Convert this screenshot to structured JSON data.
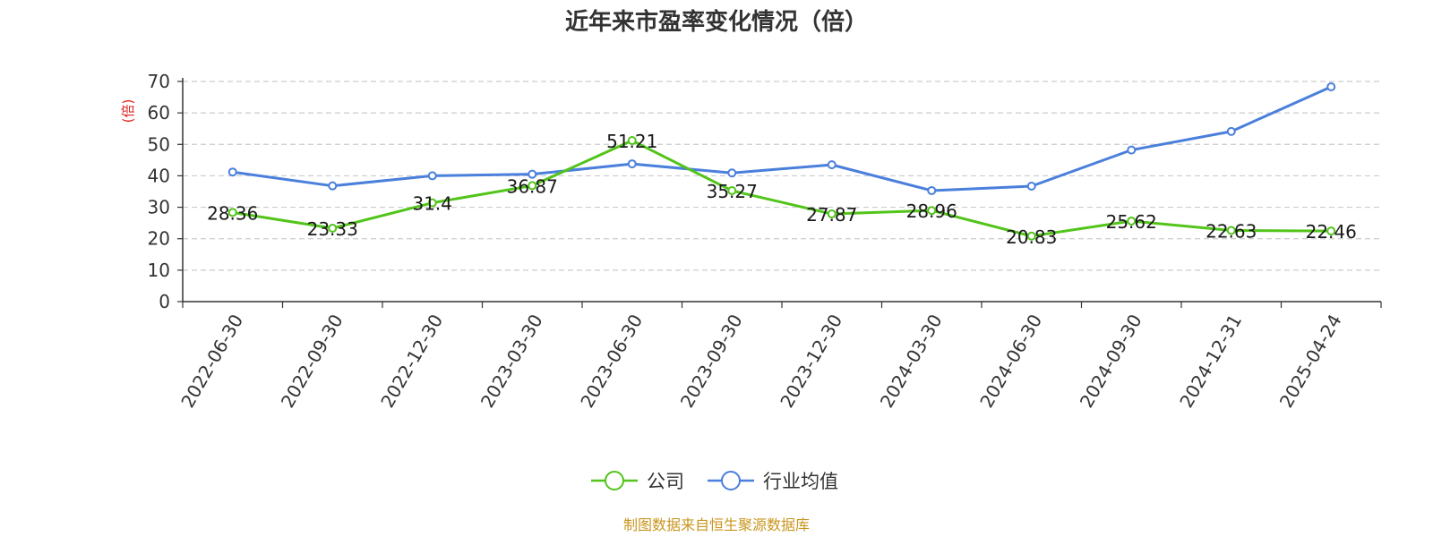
{
  "chart_data": {
    "type": "line",
    "title": "近年来市盈率变化情况（倍）",
    "ylabel": "(倍)",
    "xlabel": "",
    "ylim": [
      0,
      70
    ],
    "yticks": [
      0,
      10,
      20,
      30,
      40,
      50,
      60,
      70
    ],
    "grid": true,
    "legend_position": "bottom",
    "categories": [
      "2022-06-30",
      "2022-09-30",
      "2022-12-30",
      "2023-03-30",
      "2023-06-30",
      "2023-09-30",
      "2023-12-30",
      "2024-03-30",
      "2024-06-30",
      "2024-09-30",
      "2024-12-31",
      "2025-04-24"
    ],
    "series": [
      {
        "name": "公司",
        "color": "#52c41a",
        "values": [
          28.36,
          23.33,
          31.4,
          36.87,
          51.21,
          35.27,
          27.87,
          28.96,
          20.83,
          25.62,
          22.63,
          22.46
        ],
        "labels": [
          "28.36",
          "23.33",
          "31.4",
          "36.87",
          "51.21",
          "35.27",
          "27.87",
          "28.96",
          "20.83",
          "25.62",
          "22.63",
          "22.46"
        ]
      },
      {
        "name": "行业均值",
        "color": "#4a7fdc",
        "values": [
          41.2,
          36.8,
          40.0,
          40.5,
          43.8,
          40.9,
          43.5,
          35.3,
          36.7,
          48.2,
          54.1,
          68.3
        ]
      }
    ]
  },
  "footer": {
    "source": "制图数据来自恒生聚源数据库",
    "source_color": "#c8961e"
  },
  "ylabel_color": "#e0201a"
}
